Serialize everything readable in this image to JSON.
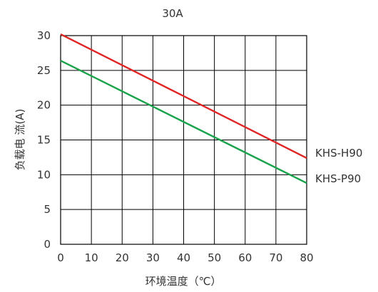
{
  "chart_data": {
    "type": "line",
    "title": "30A",
    "xlabel": "环境温度（℃）",
    "ylabel": "负载电 流(A)",
    "xlim": [
      0,
      80
    ],
    "ylim": [
      0,
      30
    ],
    "xticks": [
      "0",
      "10",
      "20",
      "30",
      "40",
      "50",
      "60",
      "70",
      "80"
    ],
    "yticks": [
      "0",
      "5",
      "10",
      "15",
      "20",
      "25",
      "30"
    ],
    "grid": true,
    "legend": "series labels at right end of lines",
    "series": [
      {
        "name": "KHS-H90",
        "x": [
          0,
          80
        ],
        "y": [
          30.2,
          12.4
        ],
        "color": "#e02424"
      },
      {
        "name": "KHS-P90",
        "x": [
          0,
          80
        ],
        "y": [
          26.4,
          8.8
        ],
        "color": "#1aa34a"
      }
    ]
  }
}
